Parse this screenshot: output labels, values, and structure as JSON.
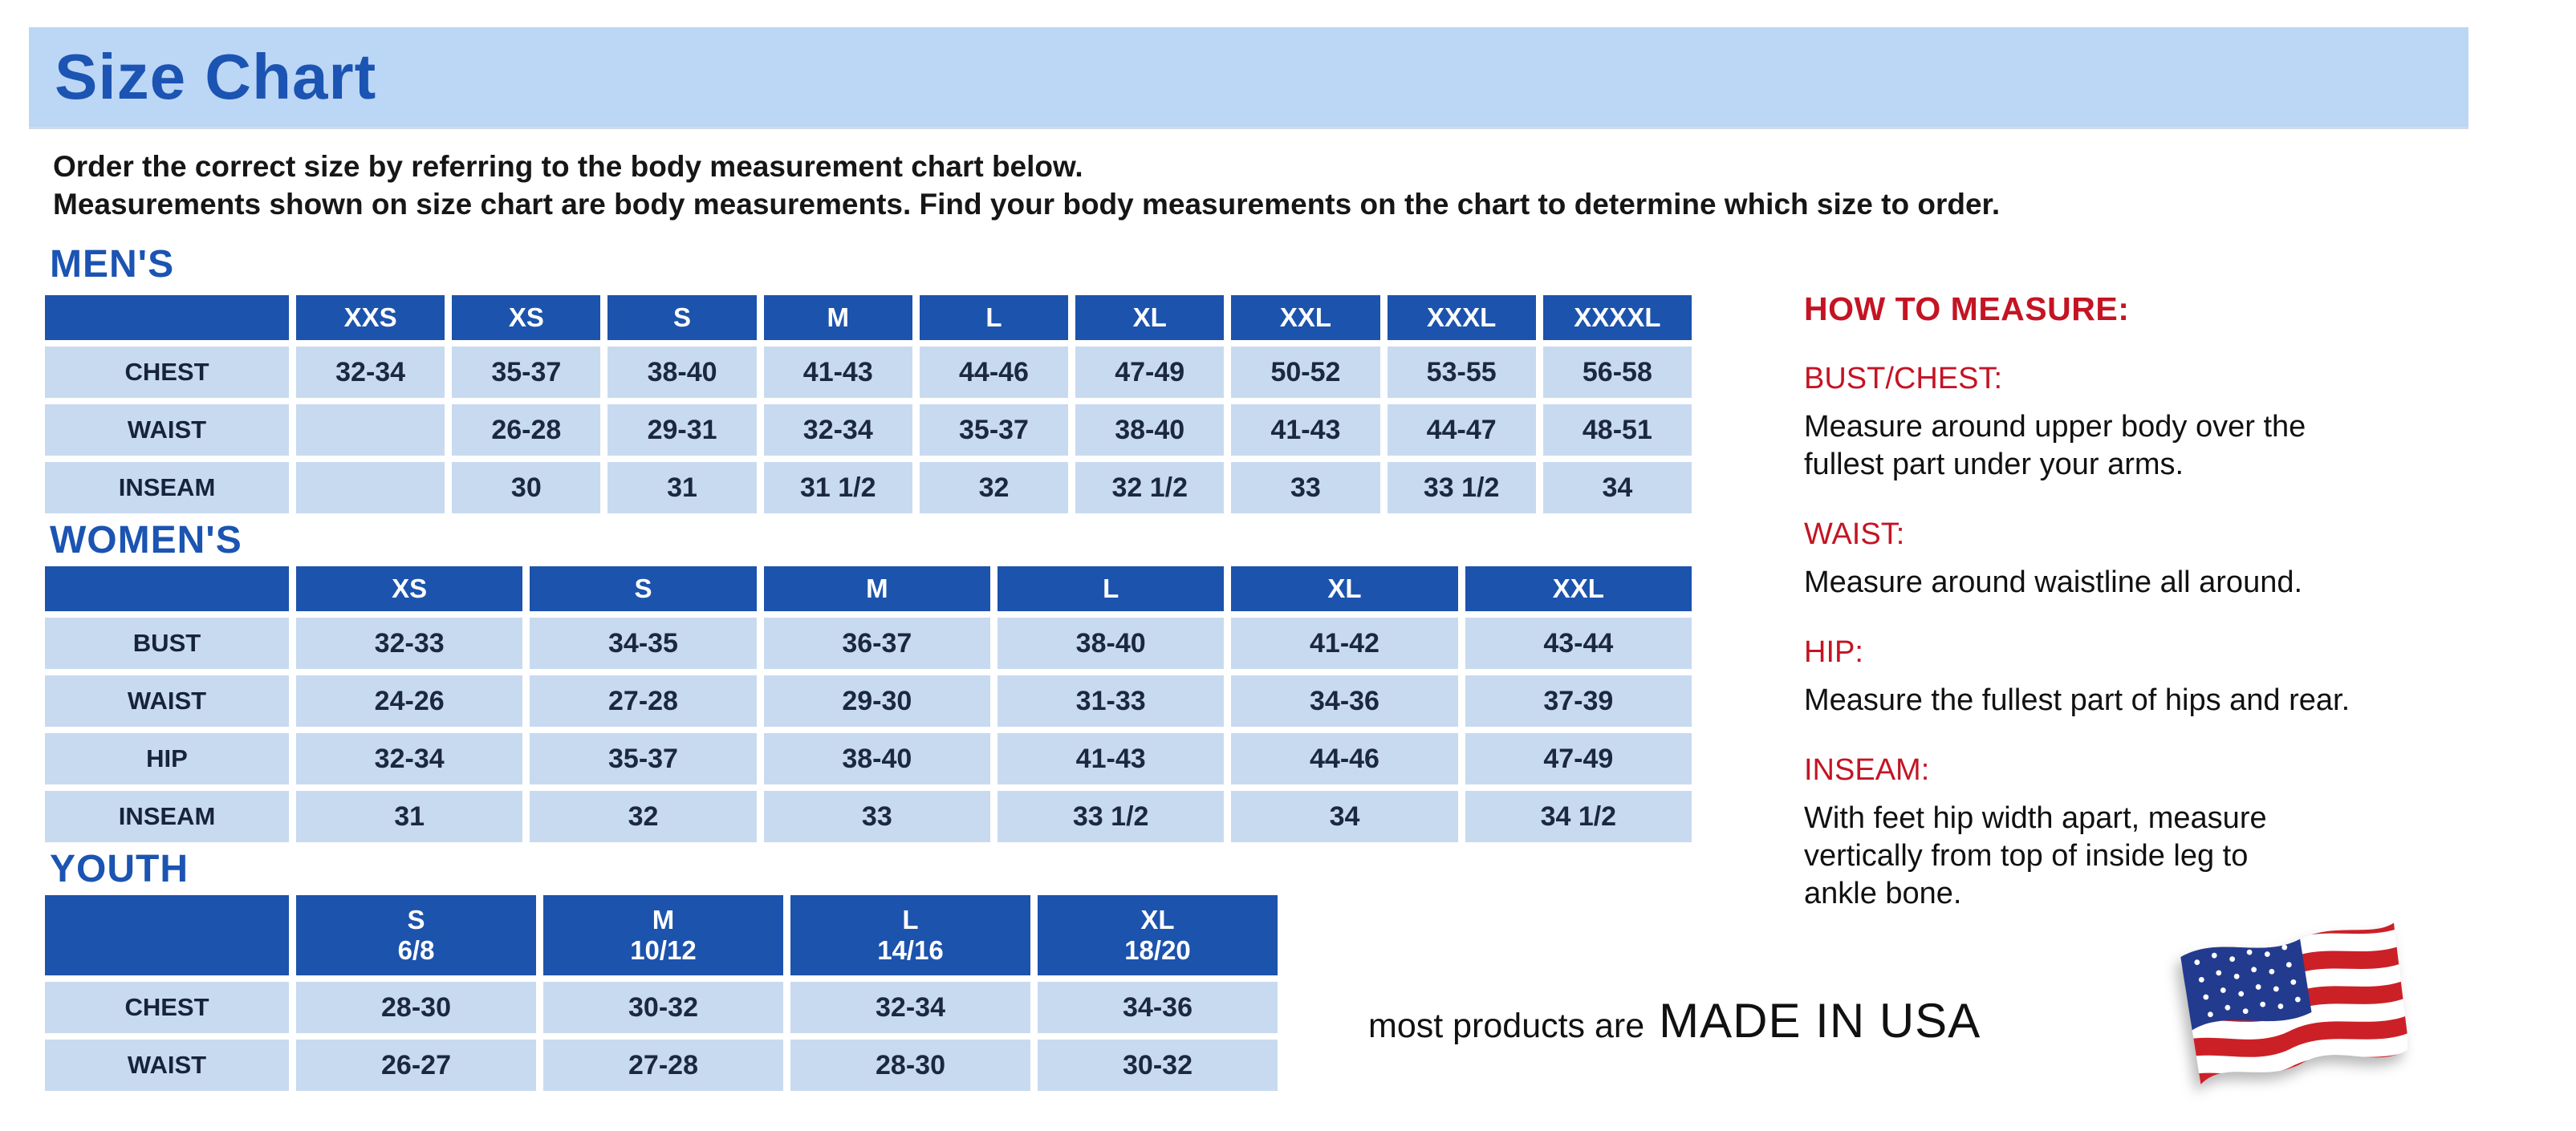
{
  "page": {
    "title": "Size Chart",
    "intro": "Order the correct size by referring to the body measurement chart below.\nMeasurements shown on size chart are body measurements.  Find your body measurements on the chart to determine which size to order."
  },
  "colors": {
    "banner_bg": "#bcd6f5",
    "heading_blue": "#1b54b2",
    "table_header_blue": "#1c53ad",
    "table_cell_blue": "#c8daf0",
    "cell_text_navy": "#1b2840",
    "accent_red": "#c41424"
  },
  "tables": [
    {
      "heading": "MEN'S",
      "columns": [
        "",
        "XXS",
        "XS",
        "S",
        "M",
        "L",
        "XL",
        "XXL",
        "XXXL",
        "XXXXL"
      ],
      "rows": [
        {
          "label": "CHEST",
          "values": [
            "32-34",
            "35-37",
            "38-40",
            "41-43",
            "44-46",
            "47-49",
            "50-52",
            "53-55",
            "56-58"
          ]
        },
        {
          "label": "WAIST",
          "values": [
            "",
            "26-28",
            "29-31",
            "32-34",
            "35-37",
            "38-40",
            "41-43",
            "44-47",
            "48-51"
          ]
        },
        {
          "label": "INSEAM",
          "values": [
            "",
            "30",
            "31",
            "31 1/2",
            "32",
            "32 1/2",
            "33",
            "33 1/2",
            "34"
          ]
        }
      ]
    },
    {
      "heading": "WOMEN'S",
      "columns": [
        "",
        "XS",
        "S",
        "M",
        "L",
        "XL",
        "XXL"
      ],
      "rows": [
        {
          "label": "BUST",
          "values": [
            "32-33",
            "34-35",
            "36-37",
            "38-40",
            "41-42",
            "43-44"
          ]
        },
        {
          "label": "WAIST",
          "values": [
            "24-26",
            "27-28",
            "29-30",
            "31-33",
            "34-36",
            "37-39"
          ]
        },
        {
          "label": "HIP",
          "values": [
            "32-34",
            "35-37",
            "38-40",
            "41-43",
            "44-46",
            "47-49"
          ]
        },
        {
          "label": "INSEAM",
          "values": [
            "31",
            "32",
            "33",
            "33 1/2",
            "34",
            "34 1/2"
          ]
        }
      ]
    },
    {
      "heading": "YOUTH",
      "columns": [
        "",
        "S\n6/8",
        "M\n10/12",
        "L\n14/16",
        "XL\n18/20"
      ],
      "rows": [
        {
          "label": "CHEST",
          "values": [
            "28-30",
            "30-32",
            "32-34",
            "34-36"
          ]
        },
        {
          "label": "WAIST",
          "values": [
            "26-27",
            "27-28",
            "28-30",
            "30-32"
          ]
        }
      ]
    }
  ],
  "how_to_measure": {
    "heading": "HOW TO MEASURE:",
    "items": [
      {
        "label": "BUST/CHEST:",
        "text": "Measure around upper body over the\nfullest part under your arms."
      },
      {
        "label": "WAIST:",
        "text": "Measure around waistline all around."
      },
      {
        "label": "HIP:",
        "text": "Measure the fullest part of hips and rear."
      },
      {
        "label": "INSEAM:",
        "text": "With feet hip width apart, measure\nvertically from top of inside leg to\nankle bone."
      }
    ]
  },
  "footer": {
    "prefix": "most products are",
    "made_in": "MADE IN USA",
    "flag": "usa-flag-icon"
  }
}
